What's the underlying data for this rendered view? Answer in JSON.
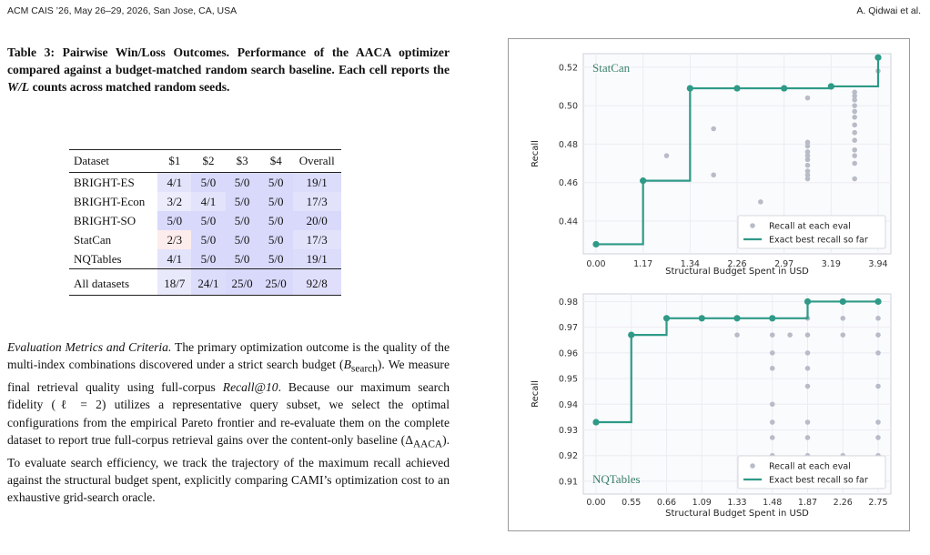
{
  "header": {
    "left": "ACM CAIS ’26, May 26–29, 2026, San Jose, CA, USA",
    "right": "A. Qidwai et al."
  },
  "caption": {
    "lead": "Table 3: Pairwise Win/Loss Outcomes. Performance of the AACA optimizer compared against a budget-matched random search baseline. Each cell reports the ",
    "wl": "W/L",
    "tail": " counts across matched random seeds."
  },
  "table": {
    "headers": [
      "Dataset",
      "$1",
      "$2",
      "$3",
      "$4",
      "Overall"
    ],
    "rows": [
      {
        "cells": [
          "BRIGHT-ES",
          "4/1",
          "5/0",
          "5/0",
          "5/0",
          "19/1"
        ],
        "tints": [
          "",
          "#e3e3fb",
          "#d9d9fb",
          "#d9d9fb",
          "#d9d9fb",
          "#dcdcfb"
        ]
      },
      {
        "cells": [
          "BRIGHT-Econ",
          "3/2",
          "4/1",
          "5/0",
          "5/0",
          "17/3"
        ],
        "tints": [
          "",
          "#ececfc",
          "#e3e3fb",
          "#d9d9fb",
          "#d9d9fb",
          "#e2e2fb"
        ]
      },
      {
        "cells": [
          "BRIGHT-SO",
          "5/0",
          "5/0",
          "5/0",
          "5/0",
          "20/0"
        ],
        "tints": [
          "",
          "#d9d9fb",
          "#d9d9fb",
          "#d9d9fb",
          "#d9d9fb",
          "#d9d9fb"
        ]
      },
      {
        "cells": [
          "StatCan",
          "2/3",
          "5/0",
          "5/0",
          "5/0",
          "17/3"
        ],
        "tints": [
          "",
          "#fcecec",
          "#d9d9fb",
          "#d9d9fb",
          "#d9d9fb",
          "#e2e2fb"
        ]
      },
      {
        "cells": [
          "NQTables",
          "4/1",
          "5/0",
          "5/0",
          "5/0",
          "19/1"
        ],
        "tints": [
          "",
          "#e3e3fb",
          "#d9d9fb",
          "#d9d9fb",
          "#d9d9fb",
          "#dcdcfb"
        ]
      }
    ],
    "total": {
      "cells": [
        "All datasets",
        "18/7",
        "24/1",
        "25/0",
        "25/0",
        "92/8"
      ],
      "tints": [
        "",
        "#e9e9fc",
        "#dcdcfb",
        "#d9d9fb",
        "#d9d9fb",
        "#dfdffb"
      ]
    }
  },
  "section": {
    "title": "Evaluation Metrics and Criteria.",
    "p1": " The primary optimization outcome is the quality of the multi-index combinations discovered under a strict search budget (",
    "b": "B",
    "b_sub": "search",
    "p2": "). We measure final retrieval quality using full-corpus ",
    "recall": "Recall@10",
    "p3": ". Because our maximum search fidelity (ℓ = 2) utilizes a representative query subset, we select the optimal configurations from the empirical Pareto frontier and re-evaluate them on the complete dataset to report true full-corpus retrieval gains over the content-only baseline (Δ",
    "delta_sub": "AACA",
    "p4": "). To evaluate search efficiency, we track the trajectory of the maximum recall achieved against the structural budget spent, explicitly comparing CAMI’s optimization cost to an exhaustive grid-search oracle."
  },
  "colors": {
    "step": "#2e9a87",
    "scatter": "#b8bcc8",
    "grid": "#ececf2"
  },
  "chart_data": [
    {
      "type": "line",
      "title": "StatCan",
      "xlabel": "Structural Budget Spent in USD",
      "ylabel": "Recall",
      "x_ticks": [
        "0.00",
        "1.17",
        "1.34",
        "2.26",
        "2.97",
        "3.19",
        "3.94"
      ],
      "y_ticks": [
        0.44,
        0.46,
        0.48,
        0.5,
        0.52
      ],
      "ylim": [
        0.423,
        0.527
      ],
      "legend": {
        "position": "lower-right",
        "entries": [
          "Recall at each eval",
          "Exact best recall so far"
        ]
      },
      "step_series": {
        "name": "Exact best recall so far",
        "x": [
          0,
          1,
          2,
          3,
          4,
          5,
          6
        ],
        "y": [
          0.428,
          0.461,
          0.509,
          0.509,
          0.509,
          0.51,
          0.525
        ]
      },
      "scatter_series": {
        "name": "Recall at each eval",
        "points": [
          [
            0,
            0.428
          ],
          [
            1,
            0.461
          ],
          [
            1.5,
            0.474
          ],
          [
            2,
            0.509
          ],
          [
            2.5,
            0.488
          ],
          [
            2.5,
            0.464
          ],
          [
            3.5,
            0.45
          ],
          [
            4.5,
            0.504
          ],
          [
            4.5,
            0.481
          ],
          [
            4.5,
            0.479
          ],
          [
            4.5,
            0.476
          ],
          [
            4.5,
            0.474
          ],
          [
            4.5,
            0.472
          ],
          [
            4.5,
            0.469
          ],
          [
            4.5,
            0.466
          ],
          [
            4.5,
            0.464
          ],
          [
            4.5,
            0.462
          ],
          [
            5.5,
            0.507
          ],
          [
            5.5,
            0.505
          ],
          [
            5.5,
            0.503
          ],
          [
            5.5,
            0.5
          ],
          [
            5.5,
            0.497
          ],
          [
            5.5,
            0.494
          ],
          [
            5.5,
            0.49
          ],
          [
            5.5,
            0.486
          ],
          [
            5.5,
            0.482
          ],
          [
            5.5,
            0.477
          ],
          [
            5.5,
            0.474
          ],
          [
            5.5,
            0.47
          ],
          [
            5.5,
            0.462
          ],
          [
            6,
            0.525
          ],
          [
            6,
            0.518
          ]
        ]
      }
    },
    {
      "type": "line",
      "title": "NQTables",
      "xlabel": "Structural Budget Spent in USD",
      "ylabel": "Recall",
      "x_ticks": [
        "0.00",
        "0.55",
        "0.66",
        "1.09",
        "1.33",
        "1.48",
        "1.87",
        "2.26",
        "2.75"
      ],
      "y_ticks": [
        0.91,
        0.92,
        0.93,
        0.94,
        0.95,
        0.96,
        0.97,
        0.98
      ],
      "ylim": [
        0.905,
        0.983
      ],
      "legend": {
        "position": "lower-right",
        "entries": [
          "Recall at each eval",
          "Exact best recall so far"
        ]
      },
      "step_series": {
        "name": "Exact best recall so far",
        "x": [
          0,
          1,
          2,
          3,
          4,
          5,
          6,
          7,
          8
        ],
        "y": [
          0.933,
          0.967,
          0.9735,
          0.9735,
          0.9735,
          0.9735,
          0.98,
          0.98,
          0.98
        ]
      },
      "scatter_series": {
        "name": "Recall at each eval",
        "points": [
          [
            0,
            0.933
          ],
          [
            1,
            0.967
          ],
          [
            2,
            0.9735
          ],
          [
            3,
            0.9735
          ],
          [
            4,
            0.9735
          ],
          [
            4,
            0.967
          ],
          [
            5,
            0.9735
          ],
          [
            5,
            0.967
          ],
          [
            5,
            0.96
          ],
          [
            5,
            0.954
          ],
          [
            5,
            0.94
          ],
          [
            5,
            0.933
          ],
          [
            5,
            0.927
          ],
          [
            5,
            0.92
          ],
          [
            5.5,
            0.967
          ],
          [
            6,
            0.98
          ],
          [
            6,
            0.9735
          ],
          [
            6,
            0.967
          ],
          [
            6,
            0.96
          ],
          [
            6,
            0.954
          ],
          [
            6,
            0.947
          ],
          [
            6,
            0.933
          ],
          [
            6,
            0.927
          ],
          [
            6,
            0.92
          ],
          [
            7,
            0.98
          ],
          [
            7,
            0.9735
          ],
          [
            7,
            0.967
          ],
          [
            7,
            0.92
          ],
          [
            8,
            0.98
          ],
          [
            8,
            0.9735
          ],
          [
            8,
            0.967
          ],
          [
            8,
            0.96
          ],
          [
            8,
            0.947
          ],
          [
            8,
            0.933
          ],
          [
            8,
            0.927
          ],
          [
            8,
            0.92
          ]
        ]
      }
    }
  ]
}
